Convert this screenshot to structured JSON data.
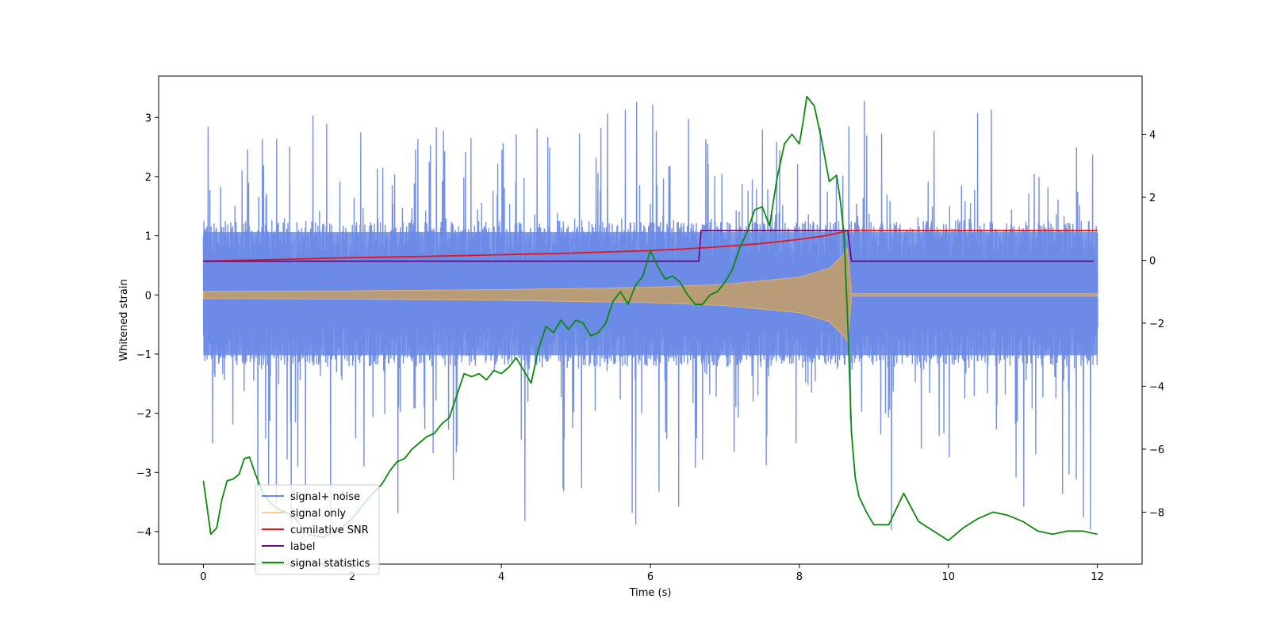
{
  "chart_data": {
    "type": "line",
    "title": "",
    "xlabel": "Time (s)",
    "ylabel": "Whitened strain",
    "ylabel_right": "",
    "xlim": [
      -0.6,
      12.6
    ],
    "ylim": [
      -4.55,
      3.7
    ],
    "ylim_right": [
      -9.65,
      5.85
    ],
    "xticks": [
      0,
      2,
      4,
      6,
      8,
      10,
      12
    ],
    "xtick_labels": [
      "0",
      "2",
      "4",
      "6",
      "8",
      "10",
      "12"
    ],
    "yticks": [
      3,
      2,
      1,
      0,
      -1,
      -2,
      -3,
      -4
    ],
    "ytick_labels": [
      "3",
      "2",
      "1",
      "0",
      "−1",
      "−2",
      "−3",
      "−4"
    ],
    "yticks_right": [
      4,
      2,
      0,
      -2,
      -4,
      -6,
      -8
    ],
    "ytick_labels_right": [
      "4",
      "2",
      "0",
      "−2",
      "−4",
      "−6",
      "−8"
    ],
    "grid": false,
    "legend_position": "lower-left",
    "series": [
      {
        "name": "signal+ noise",
        "legend_label": "signal+ noise",
        "color": "#6a89e6",
        "axis": "left",
        "kind": "noise-band",
        "x_range": [
          0,
          12
        ],
        "band_low": -1.2,
        "band_high": 1.25,
        "peak_max": 3.3,
        "peak_min": -4.15,
        "sample_count": 1500
      },
      {
        "name": "signal only",
        "legend_label": "signal only",
        "color": "#f5b86b",
        "axis": "left",
        "kind": "chirp-envelope",
        "envelope_x": [
          0,
          2,
          4,
          6,
          7,
          8,
          8.4,
          8.6,
          8.65,
          8.7,
          12
        ],
        "envelope_amplitude": [
          0.06,
          0.07,
          0.09,
          0.13,
          0.18,
          0.3,
          0.45,
          0.7,
          0.82,
          0.02,
          0.02
        ]
      },
      {
        "name": "cumilative SNR",
        "legend_label": "cumilative SNR",
        "color": "#e8141c",
        "axis": "left",
        "x": [
          0,
          1,
          2,
          3,
          4,
          5,
          6,
          6.5,
          7,
          7.5,
          8,
          8.3,
          8.5,
          8.65,
          8.66,
          12
        ],
        "values": [
          0.57,
          0.6,
          0.63,
          0.65,
          0.68,
          0.71,
          0.75,
          0.78,
          0.82,
          0.87,
          0.94,
          0.99,
          1.04,
          1.09,
          1.09,
          1.09
        ]
      },
      {
        "name": "label",
        "legend_label": "label",
        "color": "#6a0d84",
        "axis": "left",
        "x": [
          0,
          6.65,
          6.68,
          8.65,
          8.7,
          11.95
        ],
        "values": [
          0.57,
          0.57,
          1.09,
          1.09,
          0.57,
          0.57
        ]
      },
      {
        "name": "signal statistics",
        "legend_label": "signal statistics",
        "color": "#0a8a0a",
        "axis": "right",
        "x": [
          0,
          0.1,
          0.18,
          0.25,
          0.32,
          0.4,
          0.48,
          0.55,
          0.62,
          0.7,
          0.8,
          0.9,
          1.0,
          1.2,
          1.4,
          1.6,
          1.8,
          2.0,
          2.2,
          2.4,
          2.5,
          2.6,
          2.7,
          2.8,
          2.9,
          3.0,
          3.1,
          3.2,
          3.3,
          3.4,
          3.5,
          3.6,
          3.7,
          3.8,
          3.9,
          4.0,
          4.1,
          4.2,
          4.3,
          4.4,
          4.5,
          4.6,
          4.7,
          4.8,
          4.9,
          5.0,
          5.1,
          5.2,
          5.3,
          5.4,
          5.5,
          5.6,
          5.7,
          5.8,
          5.9,
          6.0,
          6.1,
          6.2,
          6.3,
          6.4,
          6.5,
          6.6,
          6.7,
          6.8,
          6.9,
          7.0,
          7.1,
          7.2,
          7.3,
          7.4,
          7.5,
          7.6,
          7.7,
          7.8,
          7.9,
          8.0,
          8.05,
          8.1,
          8.2,
          8.3,
          8.4,
          8.5,
          8.55,
          8.6,
          8.65,
          8.7,
          8.75,
          8.8,
          8.9,
          9.0,
          9.2,
          9.4,
          9.6,
          9.8,
          10.0,
          10.2,
          10.4,
          10.6,
          10.8,
          11.0,
          11.2,
          11.4,
          11.6,
          11.8,
          12.0
        ],
        "values": [
          -7.0,
          -8.7,
          -8.5,
          -7.6,
          -7.0,
          -6.95,
          -6.8,
          -6.3,
          -6.25,
          -6.8,
          -7.4,
          -7.7,
          -7.9,
          -8.1,
          -8.7,
          -8.8,
          -8.6,
          -8.2,
          -7.6,
          -7.1,
          -6.7,
          -6.4,
          -6.3,
          -6.0,
          -5.8,
          -5.6,
          -5.5,
          -5.2,
          -5.0,
          -4.3,
          -3.6,
          -3.7,
          -3.6,
          -3.8,
          -3.5,
          -3.6,
          -3.4,
          -3.1,
          -3.5,
          -3.9,
          -2.8,
          -2.1,
          -2.3,
          -1.9,
          -2.2,
          -1.9,
          -2.0,
          -2.4,
          -2.3,
          -2.0,
          -1.3,
          -1.0,
          -1.4,
          -0.8,
          -0.5,
          0.3,
          -0.2,
          -0.6,
          -0.5,
          -0.7,
          -1.1,
          -1.4,
          -1.4,
          -1.1,
          -1.0,
          -0.7,
          -0.3,
          0.4,
          0.9,
          1.6,
          1.7,
          1.1,
          2.6,
          3.7,
          4.0,
          3.7,
          4.4,
          5.2,
          4.9,
          3.8,
          2.5,
          2.7,
          1.9,
          0.8,
          -2.0,
          -5.5,
          -6.9,
          -7.5,
          -8.0,
          -8.4,
          -8.4,
          -7.4,
          -8.3,
          -8.6,
          -8.9,
          -8.5,
          -8.2,
          -8.0,
          -8.1,
          -8.3,
          -8.6,
          -8.7,
          -8.6,
          -8.6,
          -8.7
        ]
      }
    ]
  }
}
